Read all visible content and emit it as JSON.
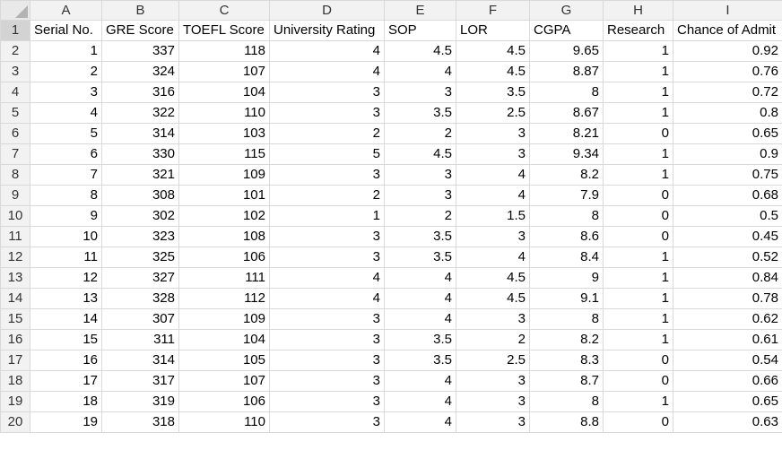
{
  "sheet": {
    "column_letters": [
      "A",
      "B",
      "C",
      "D",
      "E",
      "F",
      "G",
      "H",
      "I"
    ],
    "headers": [
      "Serial No.",
      "GRE Score",
      "TOEFL Score",
      "University Rating",
      "SOP",
      "LOR",
      "CGPA",
      "Research",
      "Chance of Admit"
    ],
    "rows": [
      [
        "1",
        "337",
        "118",
        "4",
        "4.5",
        "4.5",
        "9.65",
        "1",
        "0.92"
      ],
      [
        "2",
        "324",
        "107",
        "4",
        "4",
        "4.5",
        "8.87",
        "1",
        "0.76"
      ],
      [
        "3",
        "316",
        "104",
        "3",
        "3",
        "3.5",
        "8",
        "1",
        "0.72"
      ],
      [
        "4",
        "322",
        "110",
        "3",
        "3.5",
        "2.5",
        "8.67",
        "1",
        "0.8"
      ],
      [
        "5",
        "314",
        "103",
        "2",
        "2",
        "3",
        "8.21",
        "0",
        "0.65"
      ],
      [
        "6",
        "330",
        "115",
        "5",
        "4.5",
        "3",
        "9.34",
        "1",
        "0.9"
      ],
      [
        "7",
        "321",
        "109",
        "3",
        "3",
        "4",
        "8.2",
        "1",
        "0.75"
      ],
      [
        "8",
        "308",
        "101",
        "2",
        "3",
        "4",
        "7.9",
        "0",
        "0.68"
      ],
      [
        "9",
        "302",
        "102",
        "1",
        "2",
        "1.5",
        "8",
        "0",
        "0.5"
      ],
      [
        "10",
        "323",
        "108",
        "3",
        "3.5",
        "3",
        "8.6",
        "0",
        "0.45"
      ],
      [
        "11",
        "325",
        "106",
        "3",
        "3.5",
        "4",
        "8.4",
        "1",
        "0.52"
      ],
      [
        "12",
        "327",
        "111",
        "4",
        "4",
        "4.5",
        "9",
        "1",
        "0.84"
      ],
      [
        "13",
        "328",
        "112",
        "4",
        "4",
        "4.5",
        "9.1",
        "1",
        "0.78"
      ],
      [
        "14",
        "307",
        "109",
        "3",
        "4",
        "3",
        "8",
        "1",
        "0.62"
      ],
      [
        "15",
        "311",
        "104",
        "3",
        "3.5",
        "2",
        "8.2",
        "1",
        "0.61"
      ],
      [
        "16",
        "314",
        "105",
        "3",
        "3.5",
        "2.5",
        "8.3",
        "0",
        "0.54"
      ],
      [
        "17",
        "317",
        "107",
        "3",
        "4",
        "3",
        "8.7",
        "0",
        "0.66"
      ],
      [
        "18",
        "319",
        "106",
        "3",
        "4",
        "3",
        "8",
        "1",
        "0.65"
      ],
      [
        "19",
        "318",
        "110",
        "3",
        "4",
        "3",
        "8.8",
        "0",
        "0.63"
      ]
    ]
  }
}
